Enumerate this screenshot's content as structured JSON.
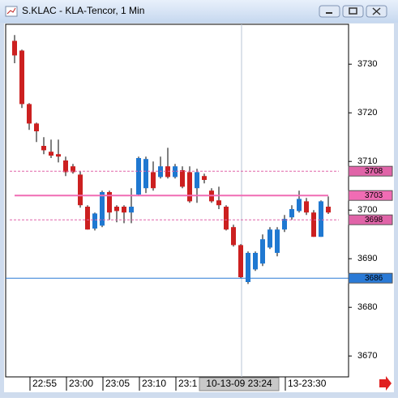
{
  "window_title": "S.KLAC - KLA-Tencor, 1 Min",
  "chart_data": {
    "type": "candlestick",
    "categories": [
      null,
      null,
      "22:55",
      null,
      null,
      null,
      null,
      "23:00",
      null,
      null,
      null,
      null,
      "23:05",
      null,
      null,
      null,
      null,
      "23:10",
      null,
      null,
      null,
      null,
      "23:1",
      null,
      null,
      null,
      null,
      null,
      null,
      null,
      null,
      "10-13-09 23:24",
      null,
      null,
      null,
      null,
      null,
      "13-23:30",
      null,
      null,
      null,
      null,
      null,
      null
    ],
    "crosshair_index": 31,
    "open": [
      3734.8,
      3732.8,
      3721.8,
      3717.8,
      3713.2,
      3712,
      3711.5,
      3710.2,
      3709,
      3707.3,
      3700.7,
      3696.2,
      3696.8,
      3703.7,
      3700.7,
      3700.7,
      3699.5,
      3703.2,
      3704.5,
      3707.8,
      3706.8,
      3709,
      3706.8,
      3708.2,
      3707.8,
      3704.5,
      3707,
      3704,
      3702,
      3700.7,
      3696.5,
      3692.8,
      3685.2,
      3687.8,
      3689,
      3692.3,
      3691.2,
      3696,
      3698.5,
      3699.8,
      3701.8,
      3699.5,
      3694.5,
      3700.7
    ],
    "high": [
      3736,
      3733,
      3722,
      3718,
      3715,
      3714.5,
      3714.5,
      3711,
      3709.5,
      3708,
      3701,
      3699.5,
      3704,
      3704,
      3701,
      3701,
      3704.5,
      3711,
      3711,
      3710,
      3711,
      3712.8,
      3709.5,
      3709,
      3709,
      3708.5,
      3707.5,
      3704.5,
      3704.8,
      3701,
      3697,
      3693,
      3691.5,
      3691.5,
      3695,
      3696.5,
      3696.5,
      3699,
      3701,
      3704,
      3702.5,
      3700,
      3702,
      3702.8
    ],
    "low": [
      3730.2,
      3721,
      3716.5,
      3714,
      3711.5,
      3710.7,
      3709.8,
      3707,
      3707.5,
      3700.5,
      3696,
      3695.8,
      3696.5,
      3698,
      3697.5,
      3697.3,
      3697.3,
      3703,
      3703.5,
      3704,
      3706.5,
      3706.5,
      3706.5,
      3704.5,
      3701.5,
      3701.5,
      3705.5,
      3701.5,
      3700.2,
      3695.8,
      3692.5,
      3686,
      3684.8,
      3687.5,
      3688.5,
      3692,
      3690.5,
      3695.5,
      3698,
      3699.5,
      3699,
      3694.5,
      3694.5,
      3699.2
    ],
    "close": [
      3731.8,
      3721.8,
      3717.8,
      3716.2,
      3712.3,
      3711.2,
      3711,
      3707.8,
      3707.8,
      3701,
      3696,
      3699.3,
      3703.7,
      3699.5,
      3699.8,
      3699.5,
      3700.7,
      3710.7,
      3710.5,
      3704.5,
      3709,
      3706.8,
      3709,
      3704.8,
      3701.8,
      3707.8,
      3706.2,
      3701.8,
      3701,
      3696,
      3692.8,
      3686.2,
      3691.2,
      3691.2,
      3694,
      3696,
      3696,
      3698.2,
      3700.2,
      3702.3,
      3699.5,
      3694.5,
      3701.8,
      3699.5
    ],
    "up_color": "#1f78d1",
    "down_color": "#cc2020",
    "ylim": [
      3665.7,
      3738.2
    ],
    "yticks": [
      3670,
      3680,
      3690,
      3700,
      3710,
      3720,
      3730
    ],
    "hlines": [
      {
        "value": 3708,
        "color": "#e064a8",
        "style": "dashed"
      },
      {
        "value": 3703,
        "color": "#f06cb4",
        "style": "solid"
      },
      {
        "value": 3698,
        "color": "#e064a8",
        "style": "dashed"
      },
      {
        "value": 3686,
        "color": "#2a7ad6",
        "style": "solid"
      }
    ]
  }
}
